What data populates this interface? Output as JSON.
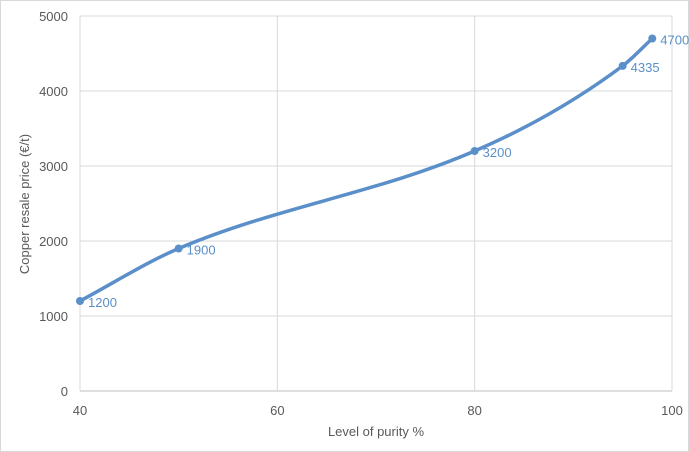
{
  "chart_data": {
    "type": "line",
    "title": "",
    "xlabel": "Level of purity %",
    "ylabel": "Copper resale price (€/t)",
    "xlim": [
      40,
      100
    ],
    "ylim": [
      0,
      5000
    ],
    "x_ticks": [
      "40",
      "60",
      "80",
      "100"
    ],
    "y_ticks": [
      "0",
      "1000",
      "2000",
      "3000",
      "4000",
      "5000"
    ],
    "grid": true,
    "smooth": true,
    "series": [
      {
        "color": "#5b8fc9",
        "points": [
          {
            "x": 40,
            "y": 1200,
            "label": "1200"
          },
          {
            "x": 50,
            "y": 1900,
            "label": "1900"
          },
          {
            "x": 80,
            "y": 3200,
            "label": "3200"
          },
          {
            "x": 95,
            "y": 4335,
            "label": "4335"
          },
          {
            "x": 98,
            "y": 4700,
            "label": "4700"
          }
        ]
      }
    ]
  }
}
